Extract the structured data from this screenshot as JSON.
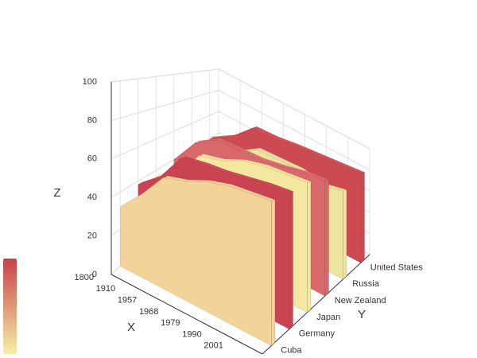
{
  "chart_data": {
    "type": "ribbon3d",
    "x_label": "X",
    "y_label": "Y",
    "z_label": "Z",
    "categories": [
      "1800",
      "1910",
      "1957",
      "1968",
      "1979",
      "1990",
      "2001",
      null
    ],
    "series": [
      {
        "name": "Cuba",
        "color": "#f2d49a",
        "values": [
          32,
          45,
          60,
          64,
          70,
          74,
          76,
          78
        ]
      },
      {
        "name": "Germany",
        "color": "#c94450",
        "values": [
          38,
          49,
          67,
          70,
          72,
          75,
          78,
          80
        ]
      },
      {
        "name": "Japan",
        "color": "#f4e7a0",
        "values": [
          36,
          44,
          64,
          68,
          75,
          79,
          81,
          83
        ]
      },
      {
        "name": "New Zealand",
        "color": "#d9686a",
        "values": [
          40,
          60,
          70,
          71,
          72,
          75,
          79,
          81
        ]
      },
      {
        "name": "Russia",
        "color": "#ede4a2",
        "values": [
          30,
          35,
          55,
          66,
          67,
          68,
          65,
          69
        ]
      },
      {
        "name": "United States",
        "color": "#cc4a52",
        "values": [
          39,
          51,
          69,
          70,
          73,
          75,
          77,
          79
        ]
      }
    ],
    "zlim": [
      0,
      100
    ],
    "zticks": [
      0,
      20,
      40,
      60,
      80,
      100
    ],
    "grid": true,
    "colorscale": [
      "#c8404a",
      "#f5f0a8"
    ]
  }
}
